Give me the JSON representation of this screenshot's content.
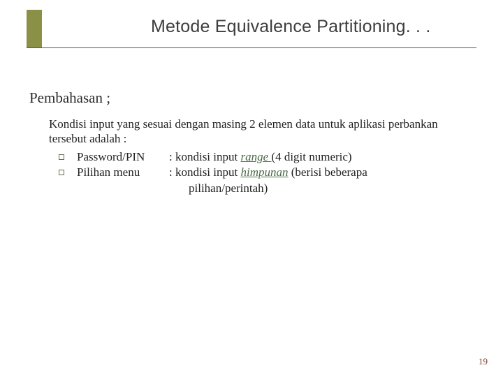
{
  "colors": {
    "accent_bar": "#8a9146",
    "underline": "#5b5b3a",
    "title_text": "#3d3d3d",
    "body_text": "#222222",
    "italic_link": "#4a6a48",
    "page_number": "#7a3a2a",
    "background": "#ffffff"
  },
  "typography": {
    "title_family": "Arial",
    "title_size_pt": 19,
    "body_family": "Times New Roman",
    "heading_size_pt": 16,
    "body_size_pt": 13
  },
  "title": "Metode Equivalence Partitioning. . .",
  "heading": "Pembahasan ;",
  "intro": "Kondisi input yang sesuai dengan masing 2 elemen data untuk aplikasi perbankan tersebut adalah :",
  "items": [
    {
      "label": "Password/PIN",
      "prefix": ": kondisi input ",
      "emph": "range ",
      "suffix": " (4 digit numeric)"
    },
    {
      "label": "Pilihan menu",
      "prefix": ": kondisi input ",
      "emph": "himpunan",
      "suffix": " (berisi beberapa",
      "cont": " pilihan/perintah)"
    }
  ],
  "page_number": "19"
}
